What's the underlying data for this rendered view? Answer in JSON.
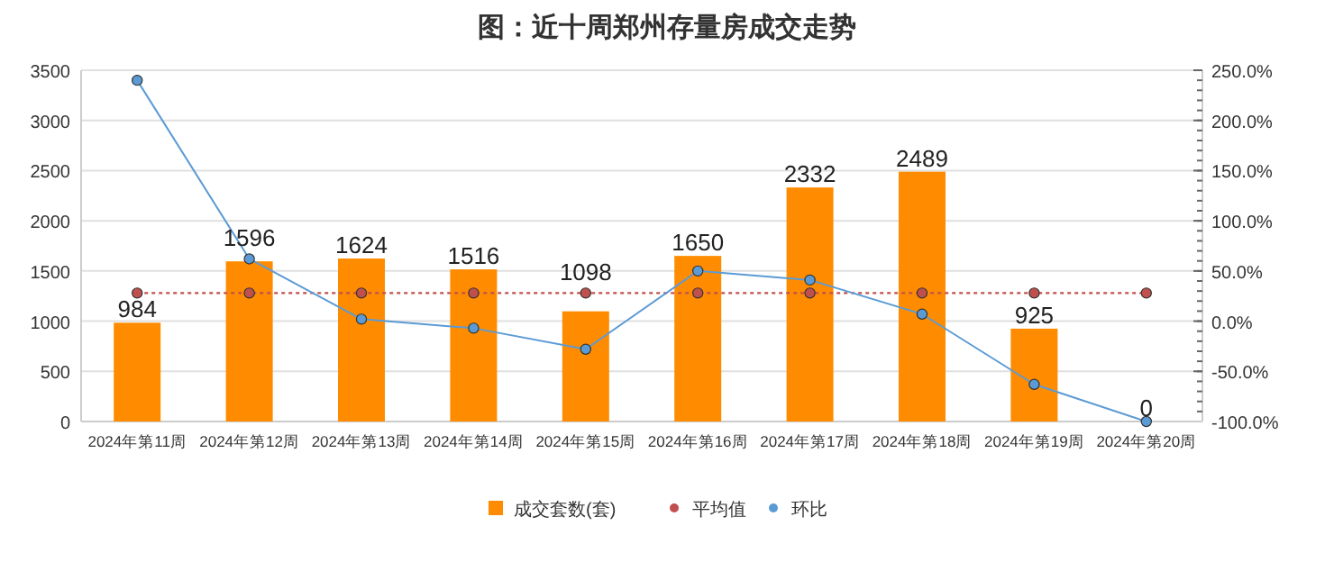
{
  "chart_data": {
    "type": "bar",
    "title": "图：近十周郑州存量房成交走势",
    "categories": [
      "2024年第11周",
      "2024年第12周",
      "2024年第13周",
      "2024年第14周",
      "2024年第15周",
      "2024年第16周",
      "2024年第17周",
      "2024年第18周",
      "2024年第19周",
      "2024年第20周"
    ],
    "series": [
      {
        "name": "成交套数(套)",
        "color": "#ff8c00",
        "values": [
          984,
          1596,
          1624,
          1516,
          1098,
          1650,
          2332,
          2489,
          925,
          0
        ],
        "value_labels": [
          "984",
          "1596",
          "1624",
          "1516",
          "1098",
          "1650",
          "2332",
          "2489",
          "925",
          "0"
        ]
      },
      {
        "name": "平均值",
        "type": "line",
        "color": "#c0504d",
        "marker": "circle",
        "line_style": "dotted",
        "values": [
          1280,
          1280,
          1280,
          1280,
          1280,
          1280,
          1280,
          1280,
          1280,
          1280
        ]
      },
      {
        "name": "环比",
        "type": "line",
        "axis": "y2",
        "color": "#5b9bd5",
        "marker": "circle",
        "line_style": "solid",
        "values": [
          240,
          62,
          2,
          -7,
          -28,
          50,
          41,
          7,
          -63,
          -100
        ]
      }
    ],
    "ylim": [
      0,
      3500
    ],
    "yticks": [
      0,
      500,
      1000,
      1500,
      2000,
      2500,
      3000,
      3500
    ],
    "y2lim": [
      -100,
      250
    ],
    "y2ticks": [
      {
        "value": -100,
        "label": "-100.0%"
      },
      {
        "value": -50,
        "label": "-50.0%"
      },
      {
        "value": 0,
        "label": "0.0%"
      },
      {
        "value": 50,
        "label": "50.0%"
      },
      {
        "value": 100,
        "label": "100.0%"
      },
      {
        "value": 150,
        "label": "150.0%"
      },
      {
        "value": 200,
        "label": "200.0%"
      },
      {
        "value": 250,
        "label": "250.0%"
      }
    ],
    "grid": "y",
    "legend": "bottom"
  }
}
